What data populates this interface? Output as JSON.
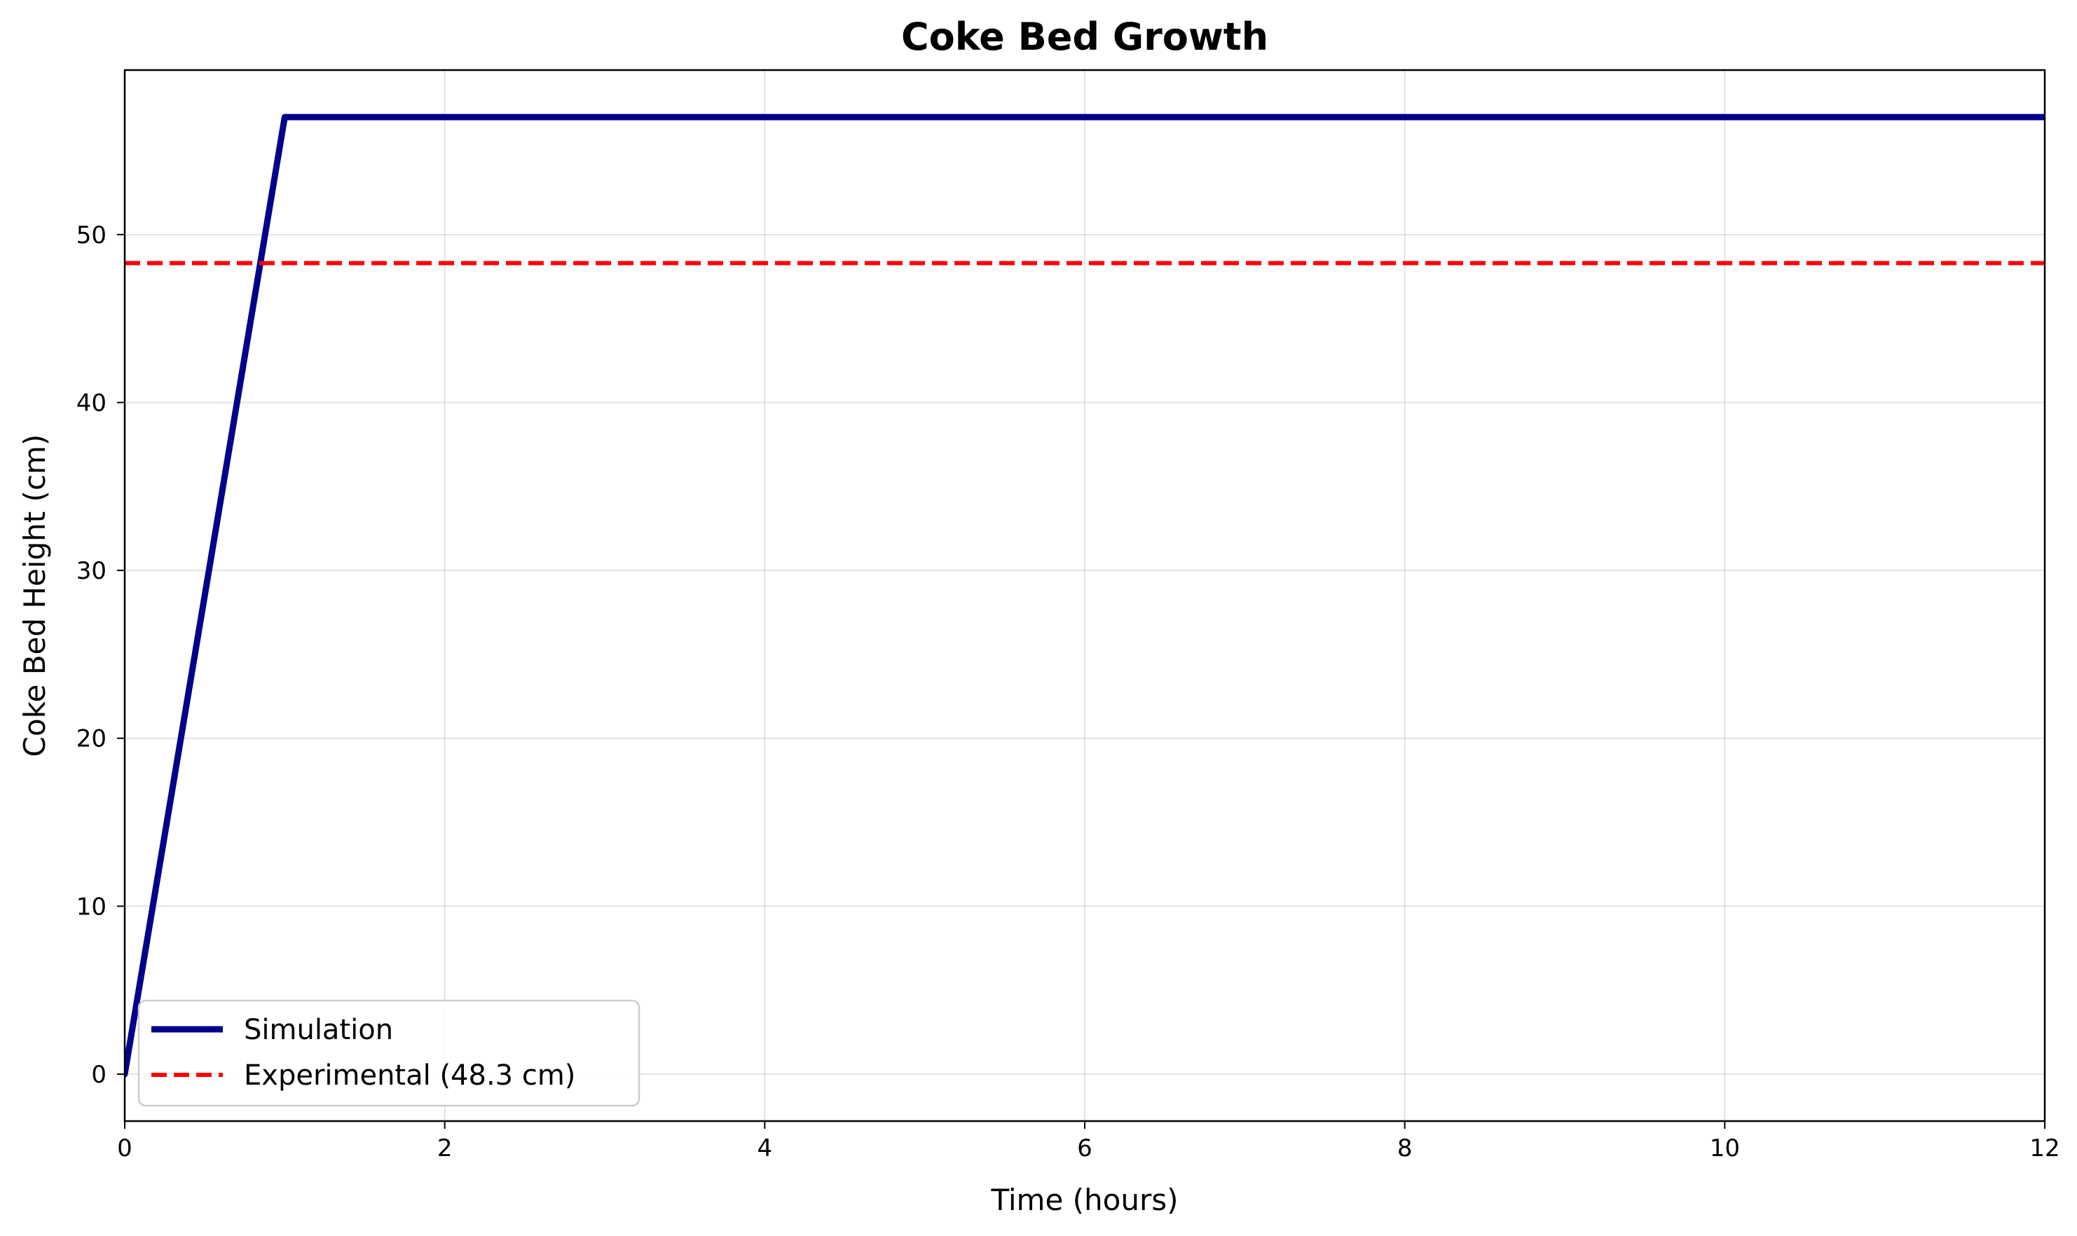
{
  "chart_data": {
    "type": "line",
    "title": "Coke Bed Growth",
    "xlabel": "Time (hours)",
    "ylabel": "Coke Bed Height (cm)",
    "xlim": [
      0,
      12
    ],
    "ylim": [
      -2.8,
      59.8
    ],
    "xticks": [
      0,
      2,
      4,
      6,
      8,
      10,
      12
    ],
    "yticks": [
      0,
      10,
      20,
      30,
      40,
      50
    ],
    "grid": true,
    "legend_position": "lower-left",
    "series": [
      {
        "name": "Simulation",
        "color": "#00008b",
        "style": "solid",
        "x": [
          0,
          1,
          12
        ],
        "y": [
          0,
          57,
          57
        ]
      },
      {
        "name": "Experimental (48.3 cm)",
        "color": "#ff0000",
        "style": "dashed",
        "x": [
          0,
          12
        ],
        "y": [
          48.3,
          48.3
        ]
      }
    ]
  }
}
